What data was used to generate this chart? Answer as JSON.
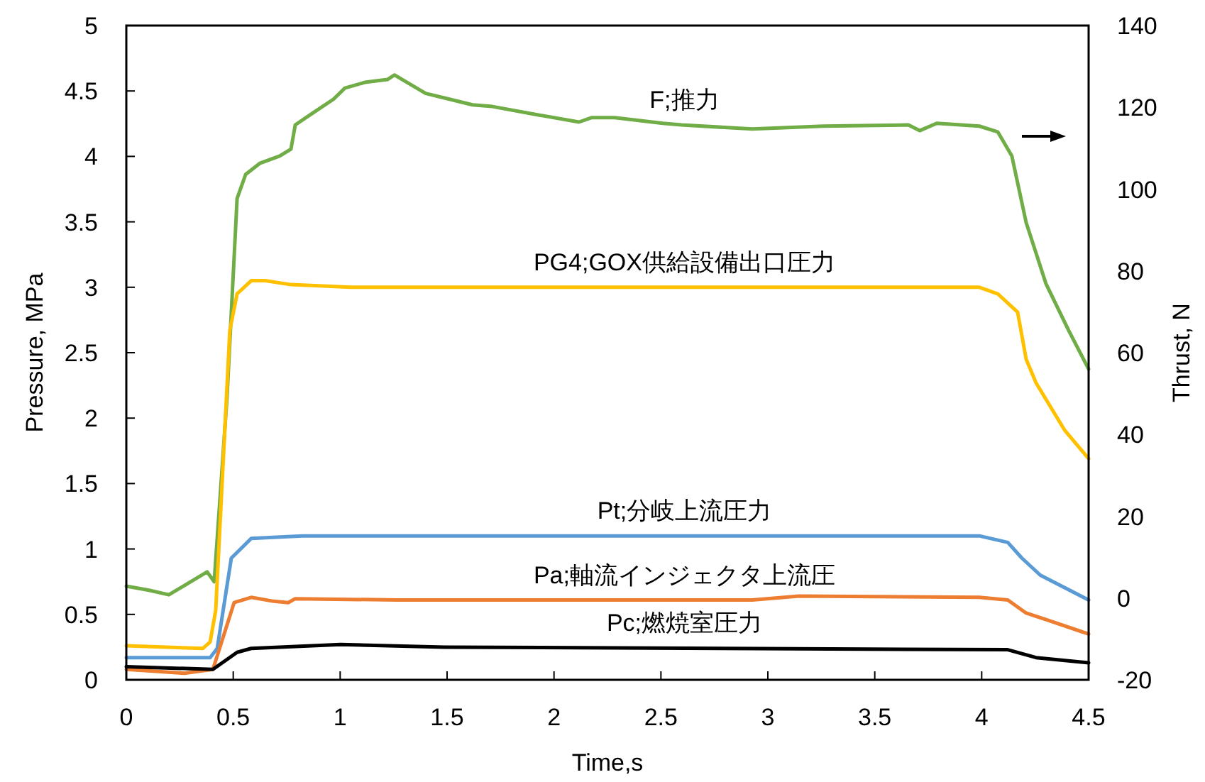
{
  "chart_data": {
    "type": "line",
    "xlabel": "Time,s",
    "ylabel": "Pressure, MPa",
    "y2label": "Thrust, N",
    "xlim": [
      0,
      4.5
    ],
    "xticks": [
      0,
      0.5,
      1,
      1.5,
      2,
      2.5,
      3,
      3.5,
      4,
      4.5
    ],
    "ylim": [
      0,
      5
    ],
    "yticks": [
      0,
      0.5,
      1,
      1.5,
      2,
      2.5,
      3,
      3.5,
      4,
      4.5,
      5
    ],
    "y2lim": [
      -20,
      140
    ],
    "y2ticks": [
      -20,
      0,
      20,
      40,
      60,
      80,
      100,
      120,
      140
    ],
    "grid": false,
    "line_style": "solid",
    "series": [
      {
        "name": "F;推力",
        "color": "#70ad47",
        "axis": "y2",
        "x": [
          0,
          0.106,
          0.199,
          0.378,
          0.411,
          0.471,
          0.518,
          0.558,
          0.624,
          0.717,
          0.77,
          0.79,
          0.869,
          0.969,
          1.022,
          1.115,
          1.221,
          1.254,
          1.4,
          1.487,
          1.619,
          1.712,
          1.931,
          2.117,
          2.177,
          2.283,
          2.509,
          2.595,
          2.927,
          3.259,
          3.657,
          3.71,
          3.79,
          3.989,
          4.075,
          4.141,
          4.208,
          4.301,
          4.407,
          4.5
        ],
        "values": [
          2.9,
          1.9,
          0.8,
          6.4,
          4.0,
          49.1,
          97.7,
          103.6,
          106.3,
          108.1,
          109.8,
          115.7,
          118.5,
          122.0,
          124.7,
          126.1,
          126.8,
          127.9,
          123.4,
          122.3,
          120.6,
          120.2,
          118.1,
          116.4,
          117.5,
          117.5,
          116.1,
          115.7,
          114.7,
          115.4,
          115.7,
          114.3,
          116.1,
          115.4,
          114.0,
          108.1,
          91.8,
          76.8,
          65.4,
          56.0
        ]
      },
      {
        "name": "PG4;GOX供給設備出口圧力",
        "color": "#ffc000",
        "x": [
          0,
          0.358,
          0.392,
          0.418,
          0.484,
          0.518,
          0.584,
          0.65,
          0.77,
          1.049,
          3.989,
          4.075,
          4.168,
          4.208,
          4.254,
          4.387,
          4.5
        ],
        "values": [
          0.26,
          0.24,
          0.29,
          0.53,
          2.67,
          2.95,
          3.05,
          3.05,
          3.02,
          3.0,
          3.0,
          2.95,
          2.81,
          2.45,
          2.27,
          1.91,
          1.69
        ]
      },
      {
        "name": "Pt;分岐上流圧力",
        "color": "#5b9bd5",
        "x": [
          0,
          0.392,
          0.425,
          0.491,
          0.584,
          0.823,
          3.989,
          4.122,
          4.188,
          4.274,
          4.5
        ],
        "values": [
          0.17,
          0.17,
          0.24,
          0.93,
          1.08,
          1.1,
          1.1,
          1.05,
          0.93,
          0.8,
          0.61
        ]
      },
      {
        "name": "Pa;軸流インジェクタ上流圧",
        "color": "#ed7d31",
        "x": [
          0,
          0.272,
          0.405,
          0.504,
          0.584,
          0.69,
          0.757,
          0.79,
          1.268,
          2.927,
          3.146,
          3.989,
          4.122,
          4.208,
          4.301,
          4.5
        ],
        "values": [
          0.08,
          0.05,
          0.08,
          0.59,
          0.63,
          0.6,
          0.59,
          0.62,
          0.61,
          0.61,
          0.64,
          0.63,
          0.61,
          0.51,
          0.46,
          0.35
        ]
      },
      {
        "name": "Pc;燃焼室圧力",
        "color": "#000000",
        "x": [
          0,
          0.405,
          0.518,
          0.584,
          1.002,
          1.487,
          4.122,
          4.254,
          4.5
        ],
        "values": [
          0.1,
          0.08,
          0.21,
          0.24,
          0.27,
          0.25,
          0.23,
          0.17,
          0.13
        ]
      }
    ]
  }
}
